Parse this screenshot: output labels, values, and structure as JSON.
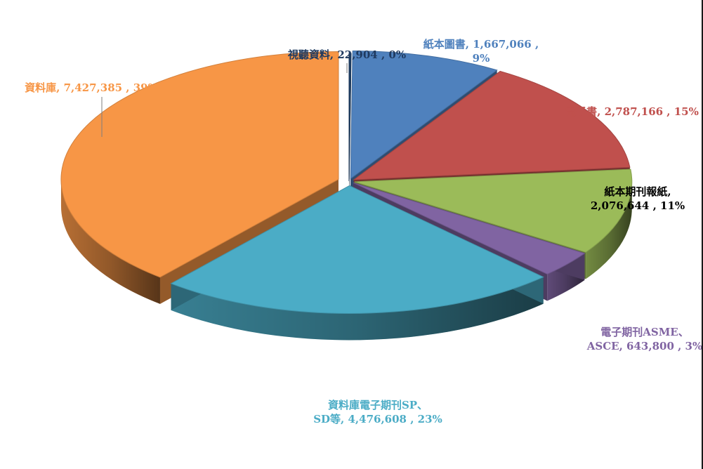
{
  "chart_data": {
    "type": "pie",
    "title": "",
    "slices": [
      {
        "name": "視聽資料",
        "value": 22904,
        "percent": "0%",
        "label_lines": [
          "視聽資料, 22,904 , 0%"
        ],
        "color": "#1f3f66",
        "label_color": "#1f3a60"
      },
      {
        "name": "紙本圖書",
        "value": 1667066,
        "percent": "9%",
        "label_lines": [
          "紙本圖書, 1,667,066 ,",
          "9%"
        ],
        "color": "#4f81bd",
        "label_color": "#4f81bd"
      },
      {
        "name": "電子書",
        "value": 2787166,
        "percent": "15%",
        "label_lines": [
          "電子書, 2,787,166 , 15%"
        ],
        "color": "#c0504d",
        "label_color": "#c0504d"
      },
      {
        "name": "紙本期刊報紙",
        "value": 2076644,
        "percent": "11%",
        "label_lines": [
          "紙本期刊報紙,",
          "2,076,644 , 11%"
        ],
        "color": "#9bbb59",
        "label_color": "#000000"
      },
      {
        "name": "電子期刊ASME、ASCE",
        "value": 643800,
        "percent": "3%",
        "label_lines": [
          "電子期刊ASME、",
          "ASCE, 643,800 , 3%"
        ],
        "color": "#8064a2",
        "label_color": "#8064a2"
      },
      {
        "name": "資料庫電子期刊SP、SD等",
        "value": 4476608,
        "percent": "23%",
        "label_lines": [
          "資料庫電子期刊SP、",
          "SD等, 4,476,608 , 23%"
        ],
        "color": "#4bacc6",
        "label_color": "#4bacc6"
      },
      {
        "name": "資料庫",
        "value": 7427385,
        "percent": "39%",
        "label_lines": [
          "資料庫, 7,427,385 , 39%"
        ],
        "color": "#f79646",
        "label_color": "#f79646"
      }
    ]
  }
}
